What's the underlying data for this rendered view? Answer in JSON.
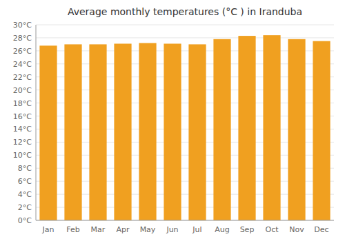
{
  "chart_data": {
    "type": "bar",
    "title": "Average monthly temperatures (°C ) in Iranduba",
    "categories": [
      "Jan",
      "Feb",
      "Mar",
      "Apr",
      "May",
      "Jun",
      "Jul",
      "Aug",
      "Sep",
      "Oct",
      "Nov",
      "Dec"
    ],
    "values": [
      26.8,
      27.0,
      27.0,
      27.1,
      27.2,
      27.1,
      27.0,
      27.8,
      28.3,
      28.4,
      27.8,
      27.5
    ],
    "color": "#F0A020",
    "ylim": [
      0,
      30
    ],
    "yticks": [
      {
        "value": 0,
        "label": "0°C"
      },
      {
        "value": 2,
        "label": "2°C"
      },
      {
        "value": 4,
        "label": "4°C"
      },
      {
        "value": 6,
        "label": "6°C"
      },
      {
        "value": 8,
        "label": "8°C"
      },
      {
        "value": 10,
        "label": "10°C"
      },
      {
        "value": 12,
        "label": "12°C"
      },
      {
        "value": 14,
        "label": "14°C"
      },
      {
        "value": 16,
        "label": "16°C"
      },
      {
        "value": 18,
        "label": "18°C"
      },
      {
        "value": 20,
        "label": "20°C"
      },
      {
        "value": 22,
        "label": "22°C"
      },
      {
        "value": 24,
        "label": "24°C"
      },
      {
        "value": 26,
        "label": "26°C"
      },
      {
        "value": 28,
        "label": "28°C"
      },
      {
        "value": 30,
        "label": "30°C"
      }
    ],
    "grid": true
  }
}
